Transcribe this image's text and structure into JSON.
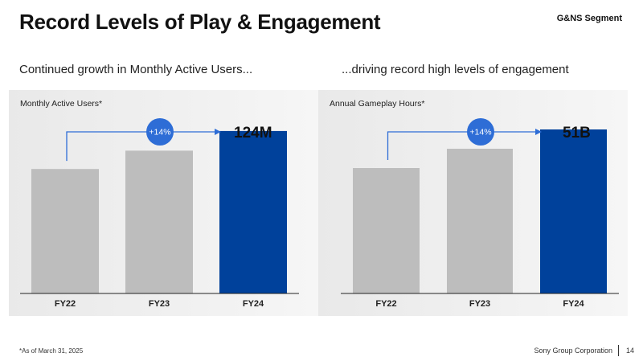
{
  "header": {
    "title": "Record Levels of Play & Engagement",
    "segment": "G&NS Segment"
  },
  "subtitles": {
    "left": "Continued growth in Monthly Active Users...",
    "right": "...driving record high levels of engagement"
  },
  "colors": {
    "bar_gray": "#bdbdbd",
    "bar_highlight": "#00419b",
    "badge": "#2e6dd6",
    "arrow": "#2e6dd6"
  },
  "chart_data": [
    {
      "type": "bar",
      "panel_label": "Monthly Active Users*",
      "categories": [
        "FY22",
        "FY23",
        "FY24"
      ],
      "values": [
        95,
        109,
        124
      ],
      "unit": "M",
      "highlight_index": 2,
      "value_label": "124M",
      "growth_label": "+14%",
      "ylim": [
        0,
        135
      ]
    },
    {
      "type": "bar",
      "panel_label": "Annual Gameplay Hours*",
      "categories": [
        "FY22",
        "FY23",
        "FY24"
      ],
      "values": [
        39,
        45,
        51
      ],
      "unit": "B",
      "highlight_index": 2,
      "value_label": "51B",
      "growth_label": "+14%",
      "ylim": [
        0,
        55
      ]
    }
  ],
  "footer": {
    "footnote": "*As of March 31, 2025",
    "corporation": "Sony Group Corporation",
    "page": "14"
  }
}
